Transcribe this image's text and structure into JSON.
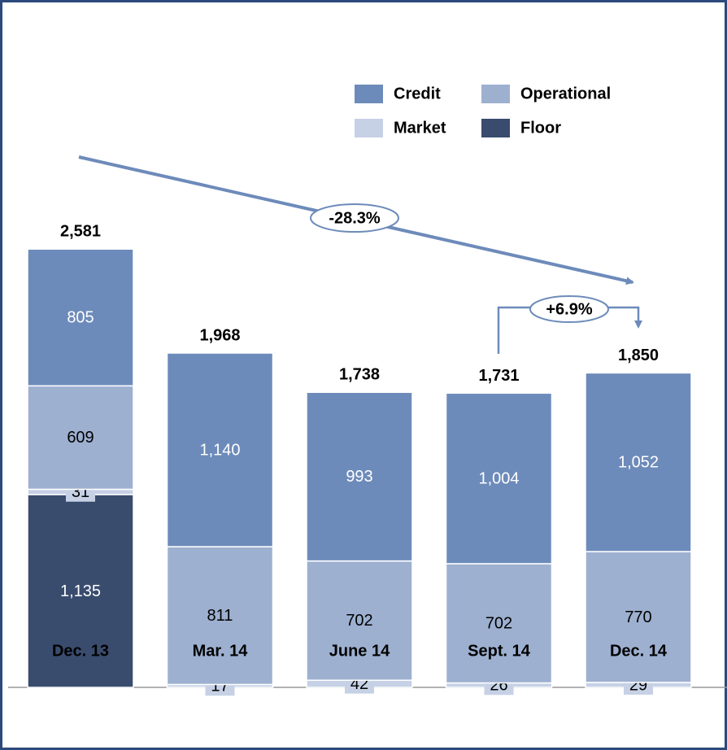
{
  "chart_data": {
    "type": "stacked_bar",
    "categories": [
      "Dec. 13",
      "Mar. 14",
      "June 14",
      "Sept. 14",
      "Dec. 14"
    ],
    "series": [
      {
        "name": "Credit",
        "color": "#6d8bba",
        "values": [
          805,
          1140,
          993,
          1004,
          1052
        ],
        "value_labels": [
          "805",
          "1,140",
          "993",
          "1,004",
          "1,052"
        ]
      },
      {
        "name": "Operational",
        "color": "#9db0d0",
        "values": [
          609,
          811,
          702,
          702,
          770
        ],
        "value_labels": [
          "609",
          "811",
          "702",
          "702",
          "770"
        ]
      },
      {
        "name": "Market",
        "color": "#c6d1e6",
        "values": [
          31,
          17,
          42,
          26,
          29
        ],
        "value_labels": [
          "31",
          "17",
          "42",
          "26",
          "29"
        ]
      },
      {
        "name": "Floor",
        "color": "#394c6e",
        "values": [
          1135,
          0,
          0,
          0,
          0
        ],
        "value_labels": [
          "1,135",
          null,
          null,
          null,
          null
        ]
      }
    ],
    "totals": [
      2581,
      1968,
      1738,
      1731,
      1850
    ],
    "total_labels": [
      "2,581",
      "1,968",
      "1,738",
      "1,731",
      "1,850"
    ],
    "annotations": [
      "-28.3%",
      "+6.9%"
    ]
  }
}
